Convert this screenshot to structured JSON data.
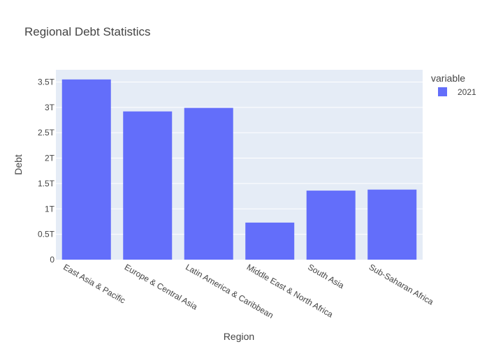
{
  "chart_data": {
    "type": "bar",
    "title": "Regional Debt Statistics",
    "xlabel": "Region",
    "ylabel": "Debt",
    "categories": [
      "East Asia & Pacific",
      "Europe & Central Asia",
      "Latin America & Caribbean",
      "Middle East & North Africa",
      "South Asia",
      "Sub-Saharan Africa"
    ],
    "series": [
      {
        "name": "2021",
        "values": [
          3550000000000.0,
          2920000000000.0,
          2990000000000.0,
          730000000000.0,
          1360000000000.0,
          1380000000000.0
        ]
      }
    ],
    "ylim": [
      0,
      3740000000000.0
    ],
    "yticks": [
      0,
      500000000000.0,
      1000000000000.0,
      1500000000000.0,
      2000000000000.0,
      2500000000000.0,
      3000000000000.0,
      3500000000000.0
    ],
    "ytick_labels": [
      "0",
      "0.5T",
      "1T",
      "1.5T",
      "2T",
      "2.5T",
      "3T",
      "3.5T"
    ],
    "legend_title": "variable",
    "legend_position": "top-right",
    "grid": true,
    "colors": {
      "bar": "#636efa",
      "plot_bg": "#e5ecf6",
      "grid": "#ffffff",
      "text": "#444444"
    }
  }
}
